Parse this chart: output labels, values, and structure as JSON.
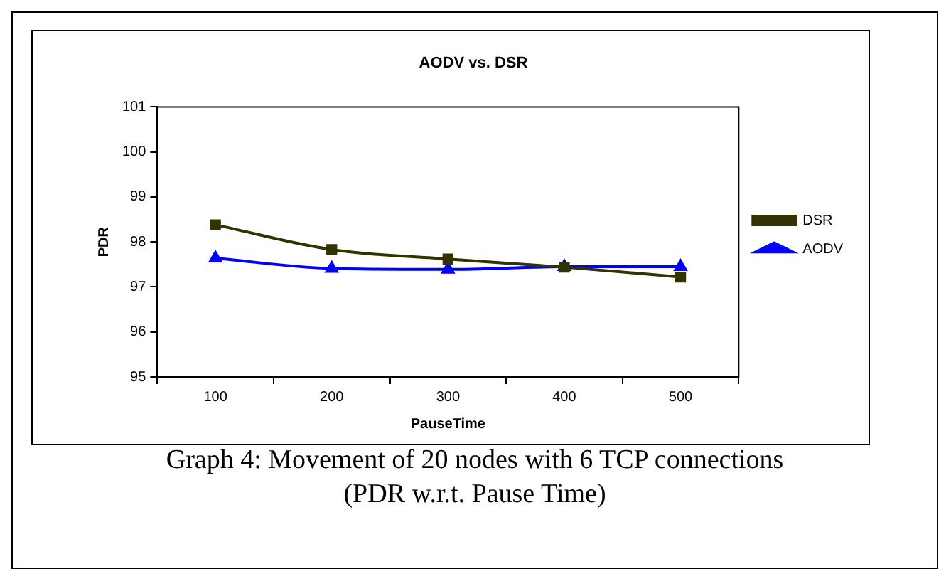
{
  "chart_data": {
    "type": "line",
    "title": "AODV vs. DSR",
    "xlabel": "PauseTime",
    "ylabel": "PDR",
    "categories": [
      "100",
      "200",
      "300",
      "400",
      "500"
    ],
    "series": [
      {
        "name": "AODV",
        "color": "#0000ff",
        "marker": "triangle",
        "values": [
          97.64,
          97.41,
          97.39,
          97.45,
          97.45
        ]
      },
      {
        "name": "DSR",
        "color": "#333300",
        "marker": "square",
        "values": [
          98.38,
          97.83,
          97.62,
          97.44,
          97.22
        ]
      }
    ],
    "ylim": [
      95,
      101
    ],
    "yticks": [
      95,
      96,
      97,
      98,
      99,
      100,
      101
    ],
    "grid": false,
    "legend": "right",
    "annotations": [
      "Graph 4: Movement of 20 nodes with 6 TCP connections",
      "(PDR w.r.t. Pause Time)"
    ]
  }
}
